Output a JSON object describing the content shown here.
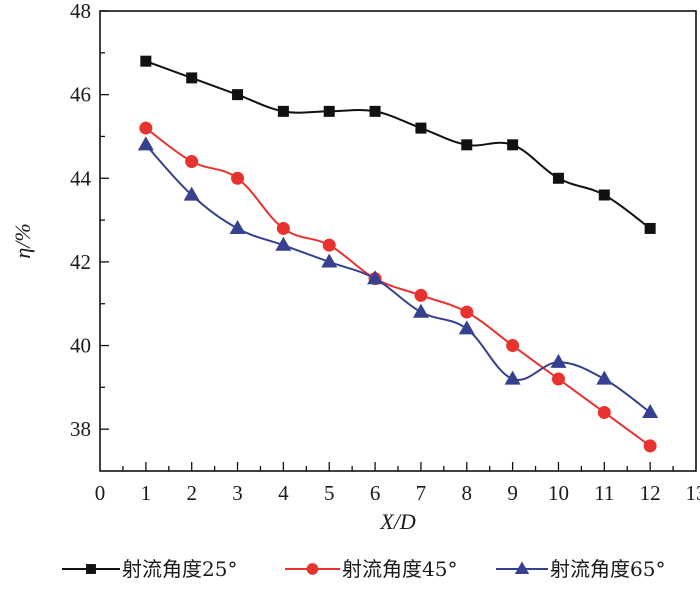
{
  "chart_data": {
    "type": "line",
    "title": "",
    "xlabel": "X/D",
    "ylabel": "η/%",
    "xlim": [
      0,
      13
    ],
    "ylim": [
      37,
      48
    ],
    "xticks": [
      "0",
      "1",
      "2",
      "3",
      "4",
      "5",
      "6",
      "7",
      "8",
      "9",
      "10",
      "11",
      "12",
      "13"
    ],
    "yticks": [
      "38",
      "40",
      "42",
      "44",
      "46",
      "48"
    ],
    "grid": false,
    "legend_position": "bottom",
    "x": [
      1,
      2,
      3,
      4,
      5,
      6,
      7,
      8,
      9,
      10,
      11,
      12
    ],
    "series": [
      {
        "name": "射流角度25°",
        "color": "#111111",
        "marker": "square",
        "values": [
          46.8,
          46.4,
          46.0,
          45.6,
          45.6,
          45.6,
          45.2,
          44.8,
          44.8,
          44.0,
          43.6,
          42.8
        ]
      },
      {
        "name": "射流角度45°",
        "color": "#e8322e",
        "marker": "circle",
        "values": [
          45.2,
          44.4,
          44.0,
          42.8,
          42.4,
          41.6,
          41.2,
          40.8,
          40.0,
          39.2,
          38.4,
          37.6
        ]
      },
      {
        "name": "射流角度65°",
        "color": "#35408e",
        "marker": "triangle",
        "values": [
          44.8,
          43.6,
          42.8,
          42.4,
          42.0,
          41.6,
          40.8,
          40.4,
          39.2,
          39.6,
          39.2,
          38.4
        ]
      }
    ]
  }
}
